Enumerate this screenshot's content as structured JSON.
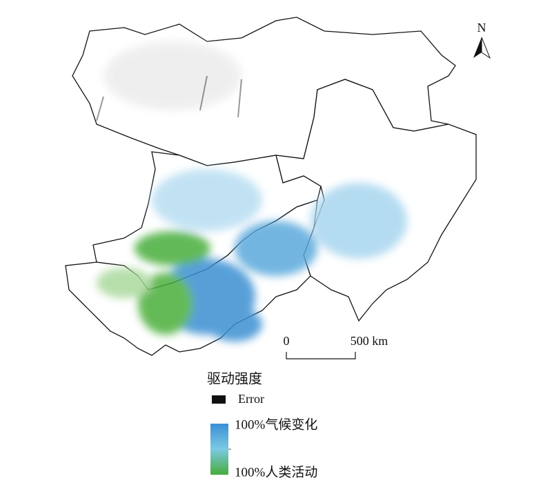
{
  "map": {
    "north_label": "N",
    "scale_bar": {
      "start": "0",
      "end": "500 km"
    }
  },
  "legend": {
    "title": "驱动强度",
    "error": "Error",
    "gradient_top": "100%气候变化",
    "gradient_bottom": "100%人类活动"
  }
}
